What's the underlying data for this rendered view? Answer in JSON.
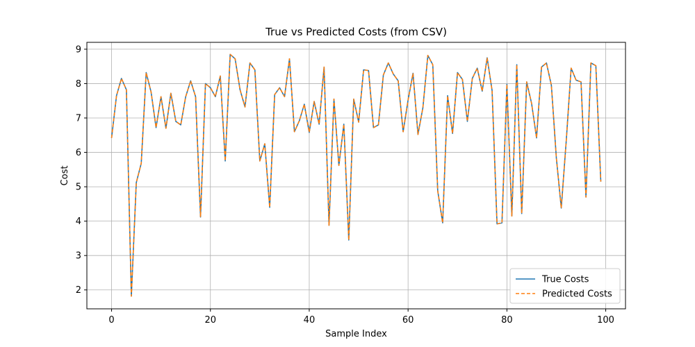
{
  "chart_data": {
    "type": "line",
    "title": "True vs Predicted Costs (from CSV)",
    "xlabel": "Sample Index",
    "ylabel": "Cost",
    "xlim": [
      -5,
      104
    ],
    "ylim": [
      1.45,
      9.2
    ],
    "xticks": [
      0,
      20,
      40,
      60,
      80,
      100
    ],
    "yticks": [
      2,
      3,
      4,
      5,
      6,
      7,
      8,
      9
    ],
    "grid": true,
    "legend_position": "lower-right",
    "x": [
      0,
      1,
      2,
      3,
      4,
      5,
      6,
      7,
      8,
      9,
      10,
      11,
      12,
      13,
      14,
      15,
      16,
      17,
      18,
      19,
      20,
      21,
      22,
      23,
      24,
      25,
      26,
      27,
      28,
      29,
      30,
      31,
      32,
      33,
      34,
      35,
      36,
      37,
      38,
      39,
      40,
      41,
      42,
      43,
      44,
      45,
      46,
      47,
      48,
      49,
      50,
      51,
      52,
      53,
      54,
      55,
      56,
      57,
      58,
      59,
      60,
      61,
      62,
      63,
      64,
      65,
      66,
      67,
      68,
      69,
      70,
      71,
      72,
      73,
      74,
      75,
      76,
      77,
      78,
      79,
      80,
      81,
      82,
      83,
      84,
      85,
      86,
      87,
      88,
      89,
      90,
      91,
      92,
      93,
      94,
      95,
      96,
      97,
      98,
      99
    ],
    "series": [
      {
        "name": "True Costs",
        "color": "#1f77b4",
        "style": "solid",
        "values": [
          6.42,
          7.65,
          8.15,
          7.82,
          1.82,
          5.12,
          5.68,
          8.32,
          7.75,
          6.72,
          7.62,
          6.7,
          7.72,
          6.9,
          6.8,
          7.62,
          8.08,
          7.62,
          4.12,
          8.0,
          7.88,
          7.62,
          8.22,
          5.75,
          8.85,
          8.72,
          7.82,
          7.32,
          8.6,
          8.4,
          5.75,
          6.25,
          4.4,
          7.68,
          7.88,
          7.62,
          8.72,
          6.6,
          6.92,
          7.4,
          6.58,
          7.48,
          6.82,
          8.48,
          3.88,
          7.55,
          5.62,
          6.82,
          3.45,
          7.55,
          6.88,
          8.4,
          8.38,
          6.72,
          6.8,
          8.25,
          8.6,
          8.28,
          8.08,
          6.6,
          7.52,
          8.3,
          6.52,
          7.3,
          8.82,
          8.55,
          4.88,
          3.95,
          7.65,
          6.55,
          8.32,
          8.12,
          6.9,
          8.15,
          8.45,
          7.78,
          8.75,
          7.8,
          3.92,
          3.95,
          7.98,
          4.15,
          8.55,
          4.22,
          8.05,
          7.42,
          6.42,
          8.48,
          8.6,
          7.95,
          5.85,
          4.38,
          6.32,
          8.45,
          8.1,
          8.05,
          4.7,
          8.6,
          8.52,
          5.15
        ]
      },
      {
        "name": "Predicted Costs",
        "color": "#ff7f0e",
        "style": "dashed",
        "values": [
          6.42,
          7.65,
          8.15,
          7.82,
          1.82,
          5.12,
          5.68,
          8.32,
          7.75,
          6.72,
          7.62,
          6.7,
          7.72,
          6.9,
          6.8,
          7.62,
          8.08,
          7.62,
          4.12,
          8.0,
          7.88,
          7.62,
          8.22,
          5.75,
          8.85,
          8.72,
          7.82,
          7.32,
          8.6,
          8.4,
          5.75,
          6.25,
          4.4,
          7.68,
          7.88,
          7.62,
          8.72,
          6.6,
          6.92,
          7.4,
          6.58,
          7.48,
          6.82,
          8.48,
          3.88,
          7.55,
          5.62,
          6.82,
          3.45,
          7.55,
          6.88,
          8.4,
          8.38,
          6.72,
          6.8,
          8.25,
          8.6,
          8.28,
          8.08,
          6.6,
          7.52,
          8.3,
          6.52,
          7.3,
          8.82,
          8.55,
          4.88,
          3.95,
          7.65,
          6.55,
          8.32,
          8.12,
          6.9,
          8.15,
          8.45,
          7.78,
          8.75,
          7.8,
          3.92,
          3.95,
          7.98,
          4.15,
          8.55,
          4.22,
          8.05,
          7.42,
          6.42,
          8.48,
          8.6,
          7.95,
          5.85,
          4.38,
          6.32,
          8.45,
          8.1,
          8.05,
          4.7,
          8.6,
          8.52,
          5.15
        ]
      }
    ]
  }
}
